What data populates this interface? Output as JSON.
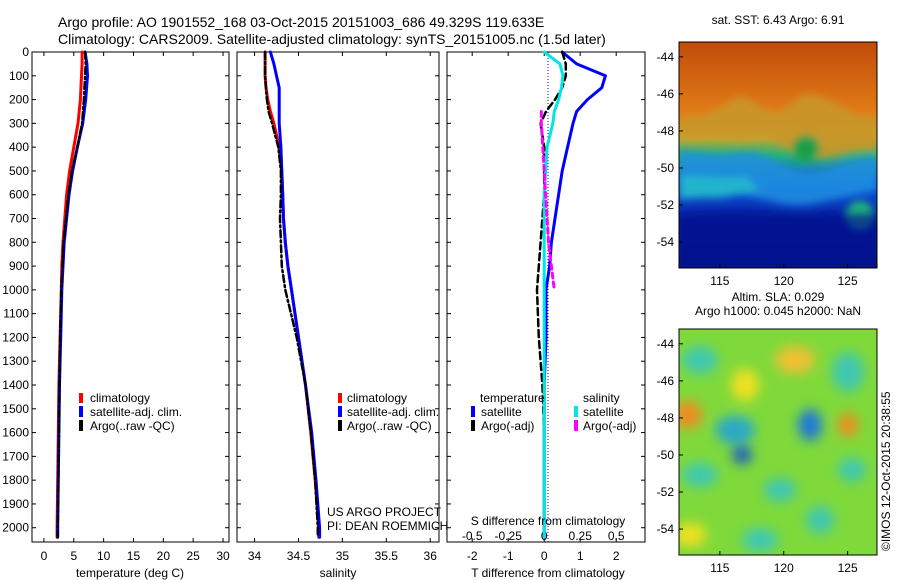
{
  "header": {
    "line1": "Argo profile: AO 1901552_168 03-Oct-2015 20151003_686 49.329S 119.633E",
    "line2": "Climatology: CARS2009. Satellite-adjusted climatology: synTS_20151005.nc (1.5d later)"
  },
  "colors": {
    "climatology": "#ff0000",
    "satellite": "#0000ff",
    "argo": "#000000",
    "s_satellite": "#00e5e5",
    "s_argo": "#ff00ff"
  },
  "chart_data": [
    {
      "type": "line",
      "xlabel": "temperature (deg C)",
      "ylabel": "",
      "xlim": [
        -2,
        31
      ],
      "ylim": [
        0,
        2060
      ],
      "x_ticks": [
        "0",
        "5",
        "10",
        "15",
        "20",
        "25",
        "30"
      ],
      "y_ticks": [
        "0",
        "100",
        "200",
        "300",
        "400",
        "500",
        "600",
        "700",
        "800",
        "900",
        "1000",
        "1100",
        "1200",
        "1300",
        "1400",
        "1500",
        "1600",
        "1700",
        "1800",
        "1900",
        "2000"
      ],
      "legend": [
        "climatology",
        "satellite-adj. clim.",
        "Argo(..raw -QC)"
      ],
      "legend_position": "lower-middle",
      "depth": [
        0,
        50,
        100,
        200,
        300,
        400,
        500,
        600,
        700,
        800,
        900,
        1000,
        1200,
        1400,
        1600,
        1800,
        2000,
        2040
      ],
      "series": [
        {
          "name": "climatology",
          "values": [
            6.4,
            6.4,
            6.3,
            6.1,
            5.7,
            5.0,
            4.3,
            3.8,
            3.5,
            3.2,
            3.0,
            2.9,
            2.7,
            2.5,
            2.4,
            2.3,
            2.2,
            2.2
          ]
        },
        {
          "name": "satellite-adj. clim.",
          "values": [
            6.9,
            7.2,
            7.3,
            7.0,
            6.5,
            5.6,
            4.8,
            4.2,
            3.8,
            3.4,
            3.2,
            3.0,
            2.8,
            2.6,
            2.5,
            2.4,
            2.3,
            2.3
          ]
        },
        {
          "name": "Argo(..raw -QC)",
          "values": [
            6.9,
            7.0,
            6.9,
            6.7,
            6.4,
            5.6,
            4.7,
            4.1,
            3.7,
            3.3,
            3.1,
            2.9,
            2.7,
            2.6,
            2.5,
            2.4,
            2.3,
            2.3
          ]
        }
      ]
    },
    {
      "type": "line",
      "xlabel": "salinity",
      "xlim": [
        33.8,
        36.1
      ],
      "ylim": [
        0,
        2060
      ],
      "x_ticks": [
        "34",
        "34.5",
        "35",
        "35.5",
        "36"
      ],
      "legend": [
        "climatology",
        "satellite-adj. clim.",
        "Argo(..raw -QC)"
      ],
      "legend_position": "lower-middle",
      "depth": [
        0,
        50,
        100,
        150,
        200,
        250,
        300,
        400,
        500,
        600,
        700,
        800,
        900,
        1000,
        1200,
        1400,
        1600,
        1800,
        2000,
        2040
      ],
      "series": [
        {
          "name": "climatology",
          "values": [
            34.12,
            34.12,
            34.12,
            34.13,
            34.15,
            34.18,
            34.22,
            34.28,
            34.31,
            34.32,
            34.33,
            34.35,
            34.38,
            34.42,
            34.5,
            34.58,
            34.64,
            34.69,
            34.73,
            34.73
          ]
        },
        {
          "name": "satellite-adj. clim.",
          "values": [
            34.18,
            34.22,
            34.25,
            34.28,
            34.28,
            34.28,
            34.28,
            34.3,
            34.31,
            34.32,
            34.33,
            34.35,
            34.38,
            34.42,
            34.5,
            34.58,
            34.65,
            34.7,
            34.74,
            34.74
          ]
        },
        {
          "name": "Argo(..raw -QC)",
          "values": [
            34.12,
            34.12,
            34.12,
            34.13,
            34.14,
            34.16,
            34.2,
            34.27,
            34.3,
            34.3,
            34.29,
            34.3,
            34.31,
            34.35,
            34.48,
            34.58,
            34.64,
            34.69,
            34.72,
            34.72
          ]
        }
      ],
      "annotations": [
        "US ARGO PROJECT",
        "PI: DEAN ROEMMICH"
      ]
    },
    {
      "type": "line",
      "xlabel": "T difference from climatology",
      "x2label": "S difference from climatology",
      "xlim": [
        -2.7,
        2.8
      ],
      "ylim": [
        0,
        2060
      ],
      "x_ticks": [
        "-2",
        "-1",
        "0",
        "1",
        "2"
      ],
      "x2_ticks": [
        "-0.5",
        "-0.25",
        "0",
        "0.25",
        "0.5"
      ],
      "legend_groups": [
        "temperature",
        "salinity"
      ],
      "legend": [
        "satellite",
        "Argo(-adj)",
        "satellite",
        "Argo(-adj)"
      ],
      "legend_position": "lower-middle",
      "depth": [
        0,
        50,
        100,
        150,
        200,
        250,
        300,
        400,
        500,
        600,
        700,
        800,
        900,
        1000,
        1200,
        1400,
        1600,
        1800,
        2000,
        2040
      ],
      "series": [
        {
          "name": "temperature satellite",
          "values": [
            0.5,
            0.9,
            1.7,
            1.6,
            1.2,
            0.9,
            0.8,
            0.65,
            0.5,
            0.4,
            0.3,
            0.2,
            0.15,
            0.05,
            0.05,
            0.0,
            0.0,
            0.0,
            0.0,
            0.0
          ]
        },
        {
          "name": "temperature Argo(-adj)",
          "values": [
            0.5,
            0.6,
            0.6,
            0.5,
            0.3,
            0.05,
            -0.1,
            0.0,
            0.0,
            0.0,
            -0.05,
            -0.1,
            -0.15,
            -0.2,
            -0.15,
            -0.05,
            0.0,
            0.0,
            0.0,
            0.0
          ]
        },
        {
          "name": "salinity satellite",
          "values": [
            0.0,
            0.11,
            0.13,
            0.12,
            0.1,
            0.07,
            0.06,
            0.02,
            0.01,
            0.0,
            0.0,
            0.0,
            0.0,
            0.0,
            0.0,
            0.0,
            0.0,
            0.0,
            0.0,
            0.0
          ]
        },
        {
          "name": "salinity Argo(-adj)",
          "values": [
            null,
            null,
            null,
            null,
            null,
            -0.02,
            -0.02,
            -0.01,
            0.0,
            0.01,
            0.02,
            0.03,
            0.05,
            0.07,
            null,
            null,
            null,
            null,
            null,
            null
          ]
        }
      ]
    }
  ],
  "maps": {
    "sst_title": "sat. SST: 6.43 Argo: 6.91",
    "sla_title1": "Altim. SLA: 0.029",
    "sla_title2": "Argo h1000: 0.045 h2000: NaN",
    "y_ticks": [
      "-44",
      "-46",
      "-48",
      "-50",
      "-52",
      "-54"
    ],
    "x_ticks": [
      "115",
      "120",
      "125"
    ],
    "credit": "©IMOS 12-Oct-2015 20:38:55"
  }
}
